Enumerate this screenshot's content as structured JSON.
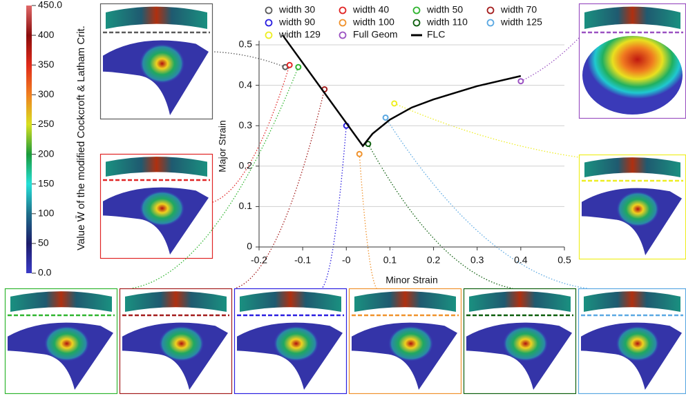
{
  "chart_data": {
    "type": "scatter",
    "x_label": "Minor Strain",
    "y_label": "Major Strain",
    "xlim": [
      -0.2,
      0.5
    ],
    "ylim": [
      0,
      0.5
    ],
    "xticks": [
      -0.2,
      -0.1,
      {
        "value": 0,
        "label": "-0"
      },
      0.1,
      0.2,
      0.3,
      0.4,
      0.5
    ],
    "yticks": [
      0,
      0.1,
      0.2,
      0.3,
      0.4,
      0.5
    ],
    "grid": true,
    "series": [
      {
        "name": "width 30",
        "color": "#5a5a5a",
        "x": [
          -0.14
        ],
        "values": [
          0.445
        ]
      },
      {
        "name": "width 40",
        "color": "#e02424",
        "x": [
          -0.13
        ],
        "values": [
          0.45
        ]
      },
      {
        "name": "width 50",
        "color": "#2fb52f",
        "x": [
          -0.11
        ],
        "values": [
          0.445
        ]
      },
      {
        "name": "width 70",
        "color": "#a31c1c",
        "x": [
          -0.05
        ],
        "values": [
          0.39
        ]
      },
      {
        "name": "width 90",
        "color": "#2a1ee0",
        "x": [
          0.0
        ],
        "values": [
          0.3
        ]
      },
      {
        "name": "width 100",
        "color": "#f0922c",
        "x": [
          0.03
        ],
        "values": [
          0.23
        ]
      },
      {
        "name": "width 110",
        "color": "#0c5e0c",
        "x": [
          0.05
        ],
        "values": [
          0.255
        ]
      },
      {
        "name": "width 125",
        "color": "#5aa8e2",
        "x": [
          0.09
        ],
        "values": [
          0.32
        ]
      },
      {
        "name": "width 129",
        "color": "#eeee22",
        "x": [
          0.11
        ],
        "values": [
          0.355
        ]
      },
      {
        "name": "Full Geom",
        "color": "#9b52c2",
        "x": [
          0.4
        ],
        "values": [
          0.41
        ]
      },
      {
        "name": "FLC",
        "color": "#000000",
        "line": true,
        "x": [
          -0.146,
          0.038,
          0.06,
          0.1,
          0.15,
          0.2,
          0.3,
          0.4
        ],
        "values": [
          0.524,
          0.25,
          0.28,
          0.315,
          0.345,
          0.365,
          0.398,
          0.423
        ]
      }
    ],
    "colorbar": {
      "label": "Value W̄ of the modified Cockcroft & Latham Crit.",
      "lim": [
        0,
        450
      ],
      "ticks": [
        {
          "value": 0,
          "label": "0.0"
        },
        50,
        100,
        150,
        200,
        250,
        300,
        350,
        400,
        {
          "value": 450,
          "label": "450.0"
        }
      ],
      "colors": [
        "#3b3bc8",
        "#1c1c6a",
        "#1f6e8a",
        "#25e0d8",
        "#1a9a3a",
        "#d8e020",
        "#f08020",
        "#e02a1a",
        "#8a0c0c",
        "#e06868"
      ]
    }
  }
}
